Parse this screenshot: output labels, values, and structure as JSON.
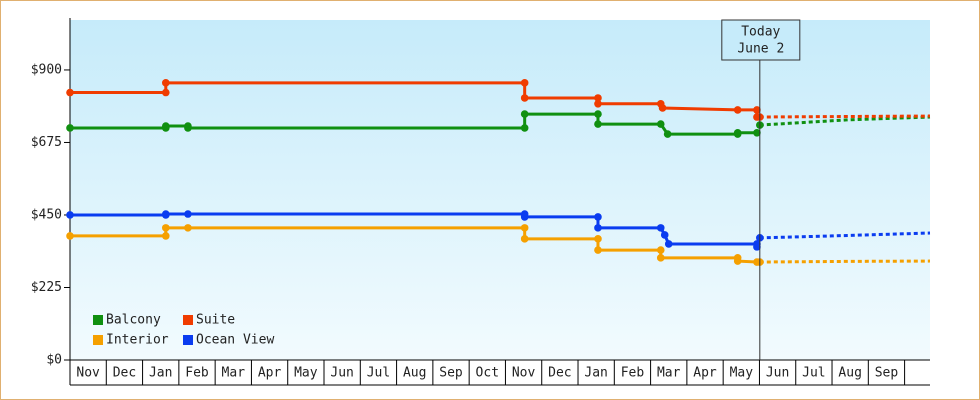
{
  "chart_data": {
    "type": "line",
    "xlim": [
      0,
      23.7
    ],
    "ylim": [
      0,
      1055
    ],
    "yticks": [
      {
        "value": 0,
        "label": "$0"
      },
      {
        "value": 225,
        "label": "$225"
      },
      {
        "value": 450,
        "label": "$450"
      },
      {
        "value": 675,
        "label": "$675"
      },
      {
        "value": 900,
        "label": "$900"
      }
    ],
    "xticks": [
      {
        "value": 0.5,
        "label": "Nov"
      },
      {
        "value": 1.5,
        "label": "Dec"
      },
      {
        "value": 2.5,
        "label": "Jan"
      },
      {
        "value": 3.5,
        "label": "Feb"
      },
      {
        "value": 4.5,
        "label": "Mar"
      },
      {
        "value": 5.5,
        "label": "Apr"
      },
      {
        "value": 6.5,
        "label": "May"
      },
      {
        "value": 7.5,
        "label": "Jun"
      },
      {
        "value": 8.5,
        "label": "Jul"
      },
      {
        "value": 9.5,
        "label": "Aug"
      },
      {
        "value": 10.5,
        "label": "Sep"
      },
      {
        "value": 11.5,
        "label": "Oct"
      },
      {
        "value": 12.5,
        "label": "Nov"
      },
      {
        "value": 13.5,
        "label": "Dec"
      },
      {
        "value": 14.5,
        "label": "Jan"
      },
      {
        "value": 15.5,
        "label": "Feb"
      },
      {
        "value": 16.5,
        "label": "Mar"
      },
      {
        "value": 17.5,
        "label": "Apr"
      },
      {
        "value": 18.5,
        "label": "May"
      },
      {
        "value": 19.5,
        "label": "Jun"
      },
      {
        "value": 20.5,
        "label": "Jul"
      },
      {
        "value": 21.5,
        "label": "Aug"
      },
      {
        "value": 22.5,
        "label": "Sep"
      }
    ],
    "grid": false,
    "legend": "lower left",
    "annotation": {
      "lines": [
        "Today",
        "June 2"
      ],
      "x": 19.01
    },
    "series": [
      {
        "name": "Balcony",
        "color": "#109010",
        "x": [
          0,
          2.64,
          2.64,
          3.25,
          3.25,
          12.53,
          12.53,
          14.55,
          14.55,
          16.28,
          16.47,
          18.4,
          18.4,
          18.93
        ],
        "values": [
          720,
          720,
          726,
          726,
          720,
          720,
          763,
          763,
          732,
          732,
          701,
          701,
          705,
          705
        ],
        "forecast": {
          "x": [
            19.01,
            21.4,
            23.7
          ],
          "values": [
            729,
            745,
            754
          ]
        }
      },
      {
        "name": "Suite",
        "color": "#f03c00",
        "x": [
          0,
          2.64,
          2.64,
          12.53,
          12.53,
          14.55,
          14.55,
          16.28,
          16.33,
          18.4,
          18.93,
          18.93
        ],
        "values": [
          830,
          830,
          860,
          860,
          813,
          813,
          795,
          795,
          782,
          776,
          776,
          754
        ],
        "forecast": {
          "x": [
            19.01,
            23.7
          ],
          "values": [
            754,
            757
          ]
        }
      },
      {
        "name": "Interior",
        "color": "#f5a000",
        "x": [
          0,
          2.64,
          2.64,
          3.25,
          12.53,
          12.53,
          14.55,
          14.55,
          16.28,
          16.28,
          18.4,
          18.4,
          18.93
        ],
        "values": [
          385,
          385,
          410,
          410,
          410,
          376,
          376,
          341,
          341,
          317,
          317,
          307,
          304
        ],
        "forecast": {
          "x": [
            19.01,
            21.5,
            23.7
          ],
          "values": [
            304,
            306,
            307
          ]
        }
      },
      {
        "name": "Ocean View",
        "color": "#0a3cf0",
        "x": [
          0,
          2.64,
          2.64,
          3.25,
          12.53,
          12.53,
          14.55,
          14.55,
          16.28,
          16.39,
          16.5,
          18.93,
          18.93
        ],
        "values": [
          450,
          450,
          453,
          453,
          453,
          444,
          444,
          410,
          410,
          388,
          360,
          360,
          351
        ],
        "forecast": {
          "x": [
            19.01,
            21,
            23.7
          ],
          "values": [
            379,
            385,
            394
          ]
        }
      }
    ]
  }
}
